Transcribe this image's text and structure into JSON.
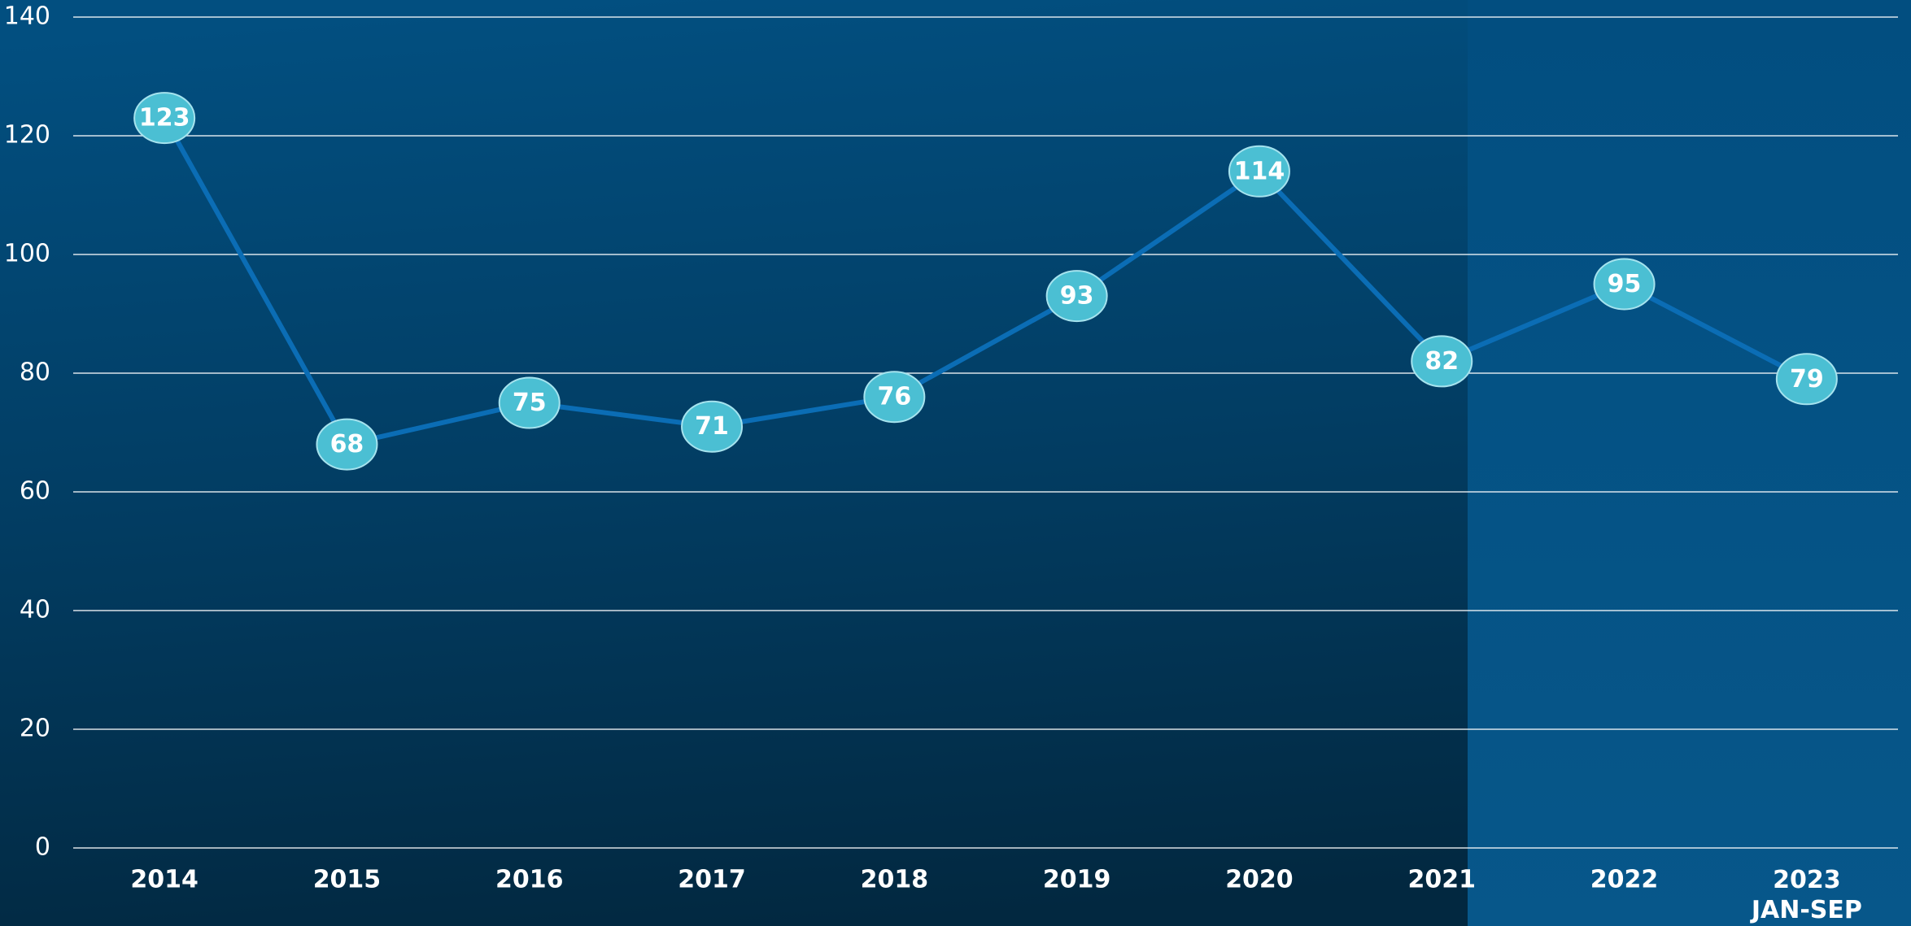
{
  "chart_data": {
    "type": "line",
    "categories": [
      "2014",
      "2015",
      "2016",
      "2017",
      "2018",
      "2019",
      "2020",
      "2021",
      "2022",
      "2023\nJAN-SEP"
    ],
    "series": [
      {
        "name": null,
        "color": "#0b6db5",
        "values": [
          123,
          68,
          75,
          71,
          76,
          93,
          114,
          82,
          95,
          79
        ]
      }
    ],
    "ylim": [
      0,
      140
    ],
    "yticks": [
      0,
      20,
      40,
      60,
      80,
      100,
      120,
      140
    ],
    "grid": true
  }
}
